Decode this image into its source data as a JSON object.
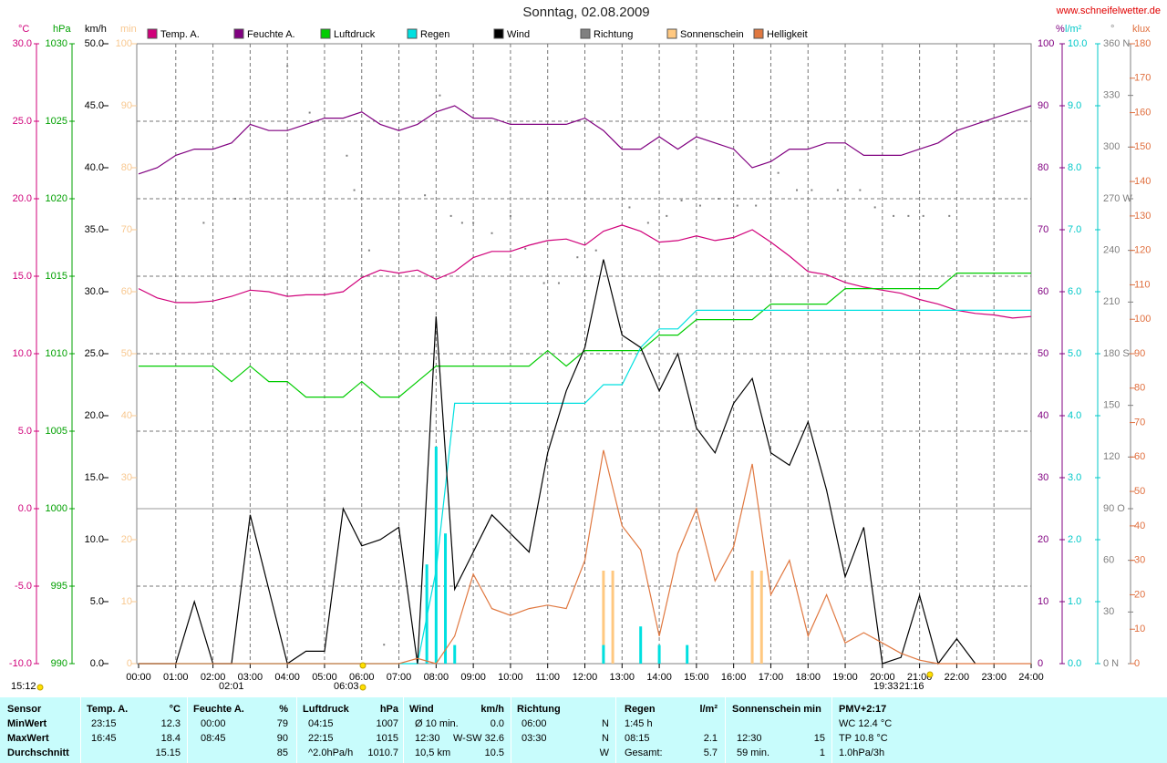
{
  "chart_data": {
    "type": "line",
    "title": "Sonntag, 02.08.2009",
    "source": "www.schneifelwetter.de",
    "x": [
      0,
      0.5,
      1,
      1.5,
      2,
      2.5,
      3,
      3.5,
      4,
      4.5,
      5,
      5.5,
      6,
      6.5,
      7,
      7.5,
      8,
      8.5,
      9,
      9.5,
      10,
      10.5,
      11,
      11.5,
      12,
      12.5,
      13,
      13.5,
      14,
      14.5,
      15,
      15.5,
      16,
      16.5,
      17,
      17.5,
      18,
      18.5,
      19,
      19.5,
      20,
      20.5,
      21,
      21.5,
      22,
      22.5,
      23,
      23.5,
      24
    ],
    "xlim": [
      0,
      24
    ],
    "xticks": [
      {
        "value": 0,
        "label": "00:00"
      },
      {
        "value": 1,
        "label": "01:00"
      },
      {
        "value": 2,
        "label": "02:00"
      },
      {
        "value": 3,
        "label": "03:00"
      },
      {
        "value": 4,
        "label": "04:00"
      },
      {
        "value": 5,
        "label": "05:00"
      },
      {
        "value": 6,
        "label": "06:00"
      },
      {
        "value": 7,
        "label": "07:00"
      },
      {
        "value": 8,
        "label": "08:00"
      },
      {
        "value": 9,
        "label": "09:00"
      },
      {
        "value": 10,
        "label": "10:00"
      },
      {
        "value": 11,
        "label": "11:00"
      },
      {
        "value": 12,
        "label": "12:00"
      },
      {
        "value": 13,
        "label": "13:00"
      },
      {
        "value": 14,
        "label": "14:00"
      },
      {
        "value": 15,
        "label": "15:00"
      },
      {
        "value": 16,
        "label": "16:00"
      },
      {
        "value": 17,
        "label": "17:00"
      },
      {
        "value": 18,
        "label": "18:00"
      },
      {
        "value": 19,
        "label": "19:00"
      },
      {
        "value": 20,
        "label": "20:00"
      },
      {
        "value": 21,
        "label": "21:00"
      },
      {
        "value": 22,
        "label": "22:00"
      },
      {
        "value": 23,
        "label": "23:00"
      },
      {
        "value": 24,
        "label": "24:00"
      }
    ],
    "grid": true,
    "axes": [
      {
        "unit": "°C",
        "color": "#d0007a",
        "lim": [
          -10,
          30
        ],
        "ticks": [
          {
            "value": -10,
            "label": "-10.0"
          },
          {
            "value": -5,
            "label": "-5.0"
          },
          {
            "value": 0,
            "label": "0.0"
          },
          {
            "value": 5,
            "label": "5.0"
          },
          {
            "value": 10,
            "label": "10.0"
          },
          {
            "value": 15,
            "label": "15.0"
          },
          {
            "value": 20,
            "label": "20.0"
          },
          {
            "value": 25,
            "label": "25.0"
          },
          {
            "value": 30,
            "label": "30.0"
          }
        ]
      },
      {
        "unit": "hPa",
        "color": "#00a000",
        "lim": [
          990,
          1030
        ],
        "ticks": [
          990,
          995,
          1000,
          1005,
          1010,
          1015,
          1020,
          1025,
          1030
        ]
      },
      {
        "unit": "km/h",
        "color": "#000000",
        "lim": [
          0,
          50
        ],
        "ticks": [
          {
            "value": 0,
            "label": "0.0"
          },
          {
            "value": 5,
            "label": "5.0"
          },
          {
            "value": 10,
            "label": "10.0"
          },
          {
            "value": 15,
            "label": "15.0"
          },
          {
            "value": 20,
            "label": "20.0"
          },
          {
            "value": 25,
            "label": "25.0"
          },
          {
            "value": 30,
            "label": "30.0"
          },
          {
            "value": 35,
            "label": "35.0"
          },
          {
            "value": 40,
            "label": "40.0"
          },
          {
            "value": 45,
            "label": "45.0"
          },
          {
            "value": 50,
            "label": "50.0"
          }
        ]
      },
      {
        "unit": "min",
        "color": "#f8c890",
        "lim": [
          0,
          100
        ],
        "ticks": [
          0,
          10,
          20,
          30,
          40,
          50,
          60,
          70,
          80,
          90,
          100
        ]
      },
      {
        "unit": "%",
        "color": "#800080",
        "lim": [
          0,
          100
        ],
        "ticks": [
          0,
          10,
          20,
          30,
          40,
          50,
          60,
          70,
          80,
          90,
          100
        ]
      },
      {
        "unit": "l/m²",
        "color": "#00c8c8",
        "lim": [
          0,
          10
        ],
        "ticks": [
          {
            "value": 0,
            "label": "0.0"
          },
          {
            "value": 1,
            "label": "1.0"
          },
          {
            "value": 2,
            "label": "2.0"
          },
          {
            "value": 3,
            "label": "3.0"
          },
          {
            "value": 4,
            "label": "4.0"
          },
          {
            "value": 5,
            "label": "5.0"
          },
          {
            "value": 6,
            "label": "6.0"
          },
          {
            "value": 7,
            "label": "7.0"
          },
          {
            "value": 8,
            "label": "8.0"
          },
          {
            "value": 9,
            "label": "9.0"
          },
          {
            "value": 10,
            "label": "10.0"
          }
        ]
      },
      {
        "unit": "°",
        "color": "#808080",
        "lim": [
          0,
          360
        ],
        "ticks": [
          {
            "value": 0,
            "label": "0  N"
          },
          30,
          60,
          {
            "value": 90,
            "label": "90  O"
          },
          120,
          150,
          {
            "value": 180,
            "label": "180  S"
          },
          210,
          240,
          {
            "value": 270,
            "label": "270  W"
          },
          300,
          330,
          {
            "value": 360,
            "label": "360  N"
          }
        ]
      },
      {
        "unit": "klux",
        "color": "#e07040",
        "lim": [
          0,
          180
        ],
        "ticks": [
          0,
          10,
          20,
          30,
          40,
          50,
          60,
          70,
          80,
          90,
          100,
          110,
          120,
          130,
          140,
          150,
          160,
          170,
          180
        ]
      }
    ],
    "series": [
      {
        "name": "Temp. A.",
        "color": "#d0007a",
        "axis": 0,
        "kind": "line",
        "values": [
          14.2,
          13.6,
          13.3,
          13.3,
          13.4,
          13.7,
          14.1,
          14.0,
          13.7,
          13.8,
          13.8,
          14.0,
          14.9,
          15.4,
          15.2,
          15.4,
          14.8,
          15.3,
          16.2,
          16.6,
          16.6,
          17.0,
          17.3,
          17.4,
          17.0,
          17.9,
          18.3,
          17.9,
          17.2,
          17.3,
          17.6,
          17.3,
          17.5,
          18.0,
          17.2,
          16.3,
          15.3,
          15.1,
          14.6,
          14.3,
          14.1,
          13.9,
          13.5,
          13.2,
          12.8,
          12.6,
          12.5,
          12.3,
          12.4
        ]
      },
      {
        "name": "Feuchte A.",
        "color": "#800080",
        "axis": 4,
        "kind": "line",
        "values": [
          79,
          80,
          82,
          83,
          83,
          84,
          87,
          86,
          86,
          87,
          88,
          88,
          89,
          87,
          86,
          87,
          89,
          90,
          88,
          88,
          87,
          87,
          87,
          87,
          88,
          86,
          83,
          83,
          85,
          83,
          85,
          84,
          83,
          80,
          81,
          83,
          83,
          84,
          84,
          82,
          82,
          82,
          83,
          84,
          86,
          87,
          88,
          89,
          90
        ]
      },
      {
        "name": "Luftdruck",
        "color": "#00cc00",
        "axis": 1,
        "kind": "line",
        "values": [
          1009.2,
          1009.2,
          1009.2,
          1009.2,
          1009.2,
          1008.2,
          1009.2,
          1008.2,
          1008.2,
          1007.2,
          1007.2,
          1007.2,
          1008.2,
          1007.2,
          1007.2,
          1008.2,
          1009.2,
          1009.2,
          1009.2,
          1009.2,
          1009.2,
          1009.2,
          1010.2,
          1009.2,
          1010.2,
          1010.2,
          1010.2,
          1010.2,
          1011.2,
          1011.2,
          1012.2,
          1012.2,
          1012.2,
          1012.2,
          1013.2,
          1013.2,
          1013.2,
          1013.2,
          1014.2,
          1014.2,
          1014.2,
          1014.2,
          1014.2,
          1014.2,
          1015.2,
          1015.2,
          1015.2,
          1015.2,
          1015.2
        ]
      },
      {
        "name": "Regen",
        "color": "#00e0e0",
        "axis": 5,
        "kind": "line",
        "values": [
          0,
          0,
          0,
          0,
          0,
          0,
          0,
          0,
          0,
          0,
          0,
          0,
          0,
          0,
          0,
          0,
          1.5,
          4.2,
          4.2,
          4.2,
          4.2,
          4.2,
          4.2,
          4.2,
          4.2,
          4.5,
          4.5,
          5.1,
          5.4,
          5.4,
          5.7,
          5.7,
          5.7,
          5.7,
          5.7,
          5.7,
          5.7,
          5.7,
          5.7,
          5.7,
          5.7,
          5.7,
          5.7,
          5.7,
          5.7,
          5.7,
          5.7,
          5.7,
          5.7
        ]
      },
      {
        "name": "Wind",
        "color": "#000000",
        "axis": 2,
        "kind": "line",
        "values": [
          0,
          0,
          0,
          5,
          0,
          0,
          12,
          6,
          0,
          1,
          1,
          12.5,
          9.5,
          10,
          11,
          0,
          28,
          6,
          9,
          12,
          10.5,
          9,
          17,
          22,
          25.5,
          32.6,
          26.5,
          25.5,
          22,
          25,
          19,
          17,
          21,
          23,
          17,
          16,
          19.5,
          14,
          7,
          11,
          0,
          0.5,
          5.5,
          0,
          2,
          0,
          null,
          null,
          null
        ]
      },
      {
        "name": "Richtung",
        "color": "#808080",
        "axis": 6,
        "kind": "dot",
        "x": [
          1.75,
          2.6,
          4.0,
          4.6,
          5.0,
          5.6,
          5.8,
          6.2,
          6.6,
          7.7,
          8.1,
          8.4,
          8.7,
          9.0,
          9.5,
          10.0,
          10.4,
          10.9,
          11.3,
          11.8,
          12.3,
          13.2,
          13.7,
          14.2,
          14.6,
          15.1,
          15.6,
          16.1,
          16.6,
          17.2,
          17.7,
          18.1,
          18.8,
          19.4,
          19.8,
          20.3,
          20.7,
          21.1,
          21.8
        ],
        "values": [
          256,
          270,
          347,
          320,
          95,
          295,
          275,
          240,
          11,
          272,
          330,
          260,
          256,
          256,
          250,
          260,
          241,
          221,
          221,
          236,
          240,
          265,
          256,
          260,
          269,
          266,
          270,
          266,
          266,
          285,
          275,
          275,
          275,
          275,
          265,
          260,
          260,
          260,
          260
        ]
      },
      {
        "name": "Sonnenschein",
        "color": "#ffc880",
        "axis": 3,
        "kind": "bar",
        "x": [
          12.5,
          12.75,
          16.5,
          16.75
        ],
        "values": [
          15,
          15,
          15,
          15
        ]
      },
      {
        "name": "Helligkeit",
        "color": "#e07840",
        "axis": 7,
        "kind": "line",
        "values": [
          0,
          0,
          0,
          0,
          0,
          0,
          0,
          0,
          0,
          0,
          0,
          0,
          0,
          0,
          0,
          1.5,
          0,
          8,
          26,
          16,
          14,
          16,
          17,
          16,
          30,
          62,
          40,
          33,
          8,
          32,
          45,
          24,
          34,
          58,
          20,
          30,
          8,
          20,
          6,
          9,
          6,
          3,
          1,
          0,
          0,
          0,
          0,
          0,
          0
        ]
      },
      {
        "color": "#00e0e0",
        "axis": 5,
        "kind": "bar",
        "x": [
          7.75,
          8.0,
          8.25,
          8.5,
          12.5,
          13.5,
          14.0,
          14.75
        ],
        "values": [
          1.6,
          3.5,
          2.1,
          0.3,
          0.3,
          0.6,
          0.3,
          0.3
        ]
      }
    ],
    "annotations": [
      "15:12",
      "02:01",
      "06:03",
      "19:33",
      "21:16"
    ]
  },
  "table": {
    "header": [
      "Sensor",
      "Temp. A.",
      "°C",
      "Feuchte A.",
      "%",
      "Luftdruck",
      "hPa",
      "Wind",
      "km/h",
      "Richtung",
      "Regen",
      "l/m²",
      "Sonnenschein min",
      "PMV+2:17"
    ],
    "rows": [
      [
        "MinWert",
        "23:15",
        "12.3",
        "00:00",
        "79",
        "04:15",
        "1007",
        "Ø 10 min.",
        "0.0",
        "06:00",
        "N",
        "1:45 h",
        null,
        null,
        null,
        "WC 12.4 °C"
      ],
      [
        "MaxWert",
        "16:45",
        "18.4",
        "08:45",
        "90",
        "22:15",
        "1015",
        "12:30",
        "W-SW 32.6",
        "03:30",
        "N",
        "08:15",
        "2.1",
        "12:30",
        "15",
        "TP 10.8 °C"
      ],
      [
        "Durchschnitt",
        null,
        "15.15",
        null,
        "85",
        "^2.0hPa/h",
        "1010.7",
        "10,5 km",
        "10.5",
        null,
        "W",
        "Gesamt:",
        "5.7",
        "59 min.",
        "1",
        "1.0hPa/3h"
      ]
    ]
  }
}
